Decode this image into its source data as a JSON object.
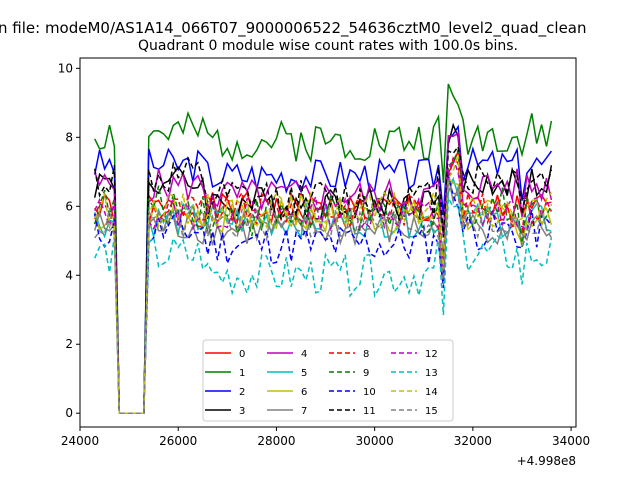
{
  "figure": {
    "suptitle": "n file: modeM0/AS1A14_066T07_9000006522_54636cztM0_level2_quad_clean",
    "title": "Quadrant 0 module wise count rates with 100.0s bins.",
    "x_offset_label": "+4.998e8"
  },
  "chart_data": {
    "type": "line",
    "xlim": [
      24000,
      34100
    ],
    "ylim": [
      -0.4,
      10.3
    ],
    "x_ticks": [
      24000,
      26000,
      28000,
      30000,
      32000,
      34000
    ],
    "x_tick_labels": [
      "24000",
      "26000",
      "28000",
      "30000",
      "32000",
      "34000"
    ],
    "y_ticks": [
      0,
      2,
      4,
      6,
      8,
      10
    ],
    "y_tick_labels": [
      "0",
      "2",
      "4",
      "6",
      "8",
      "10"
    ],
    "grid": false,
    "legend_placement": "lower-center",
    "legend_columns": 4,
    "series": [
      {
        "name": "0",
        "color": "#ff0000",
        "dash": "solid",
        "level": 5.9,
        "amp": 0.25,
        "mid_shift": 0.0,
        "seed": 1
      },
      {
        "name": "1",
        "color": "#008000",
        "dash": "solid",
        "level": 8.1,
        "amp": 0.3,
        "mid_shift": -0.2,
        "seed": 2
      },
      {
        "name": "2",
        "color": "#0000ff",
        "dash": "solid",
        "level": 7.2,
        "amp": 0.25,
        "mid_shift": -0.3,
        "seed": 3
      },
      {
        "name": "3",
        "color": "#000000",
        "dash": "solid",
        "level": 6.7,
        "amp": 0.25,
        "mid_shift": -0.6,
        "seed": 4
      },
      {
        "name": "4",
        "color": "#bf00bf",
        "dash": "solid",
        "level": 6.6,
        "amp": 0.25,
        "mid_shift": -0.3,
        "seed": 5
      },
      {
        "name": "5",
        "color": "#00bfbf",
        "dash": "solid",
        "level": 5.6,
        "amp": 0.25,
        "mid_shift": 0.0,
        "seed": 6
      },
      {
        "name": "6",
        "color": "#bfbf00",
        "dash": "solid",
        "level": 5.7,
        "amp": 0.25,
        "mid_shift": 0.0,
        "seed": 7
      },
      {
        "name": "7",
        "color": "#808080",
        "dash": "solid",
        "level": 5.4,
        "amp": 0.25,
        "mid_shift": -0.1,
        "seed": 8
      },
      {
        "name": "8",
        "color": "#ff0000",
        "dash": "dashed",
        "level": 5.9,
        "amp": 0.25,
        "mid_shift": 0.0,
        "seed": 9
      },
      {
        "name": "9",
        "color": "#008000",
        "dash": "dashed",
        "level": 6.0,
        "amp": 0.3,
        "mid_shift": -0.3,
        "seed": 10
      },
      {
        "name": "10",
        "color": "#0000ff",
        "dash": "dashed",
        "level": 5.3,
        "amp": 0.3,
        "mid_shift": -0.4,
        "seed": 11
      },
      {
        "name": "11",
        "color": "#000000",
        "dash": "dashed",
        "level": 6.8,
        "amp": 0.3,
        "mid_shift": -0.6,
        "seed": 12
      },
      {
        "name": "12",
        "color": "#bf00bf",
        "dash": "dashed",
        "level": 5.8,
        "amp": 0.25,
        "mid_shift": 0.0,
        "seed": 13
      },
      {
        "name": "13",
        "color": "#00bfbf",
        "dash": "dashed",
        "level": 4.6,
        "amp": 0.3,
        "mid_shift": -0.6,
        "seed": 14
      },
      {
        "name": "14",
        "color": "#bfbf00",
        "dash": "dashed",
        "level": 5.9,
        "amp": 0.25,
        "mid_shift": 0.0,
        "seed": 15
      },
      {
        "name": "15",
        "color": "#808080",
        "dash": "dashed",
        "level": 5.5,
        "amp": 0.25,
        "mid_shift": 0.0,
        "seed": 16
      }
    ]
  }
}
